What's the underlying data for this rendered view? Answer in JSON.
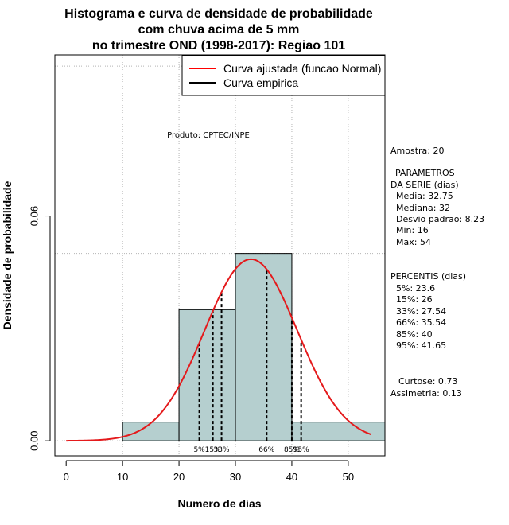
{
  "chart_data": {
    "type": "bar",
    "title_lines": [
      "Histograma e curva de densidade de probabilidade",
      "com chuva acima de 5 mm",
      "no trimestre OND (1998-2017): Regiao 101"
    ],
    "xlabel": "Numero de dias",
    "ylabel": "Densidade de probabilidade",
    "xlim": [
      -2,
      56.5
    ],
    "ylim": [
      -0.004,
      0.103
    ],
    "x_ticks": [
      0,
      10,
      20,
      30,
      40,
      50
    ],
    "y_ticks": [
      0.0,
      0.06
    ],
    "y_tick_labels": [
      "0.00",
      "0.06"
    ],
    "bins": [
      {
        "start": 10,
        "end": 20,
        "density": 0.005
      },
      {
        "start": 20,
        "end": 30,
        "density": 0.035
      },
      {
        "start": 30,
        "end": 40,
        "density": 0.05
      },
      {
        "start": 40,
        "end": 56.5,
        "density": 0.005
      }
    ],
    "normal_curve": {
      "name": "Curva ajustada (funcao Normal)",
      "mean": 32.75,
      "sd": 8.23,
      "x_range": [
        0,
        54
      ],
      "color": "#e41a1c"
    },
    "grid_h": [
      0.0,
      0.06,
      0.05,
      0.1
    ],
    "grid_v": [
      10,
      20,
      30,
      40,
      50
    ],
    "legend": {
      "position": "top-right",
      "entries": [
        {
          "label": "Curva ajustada (funcao Normal)",
          "color": "#ff0000"
        },
        {
          "label": "Curva empirica",
          "color": "#000000"
        }
      ]
    },
    "percentiles": [
      {
        "label": "5%",
        "value": 23.6
      },
      {
        "label": "15%",
        "value": 26
      },
      {
        "label": "33%",
        "value": 27.54
      },
      {
        "label": "66%",
        "value": 35.54
      },
      {
        "label": "85%",
        "value": 40
      },
      {
        "label": "95%",
        "value": 41.65
      }
    ],
    "percentile_tick_text": [
      "5%",
      "15%",
      "33%",
      "66%",
      "85%",
      "95%"
    ],
    "product_note": "Produto: CPTEC/INPE"
  },
  "side_text": {
    "amostra": "Amostra: 20",
    "param_title1": "PARAMETROS",
    "param_title2": "DA SERIE (dias)",
    "media": "Media: 32.75",
    "mediana": "Mediana: 32",
    "desvio": "Desvio padrao: 8.23",
    "min": "Min: 16",
    "max": "Max: 54",
    "pct_title": "PERCENTIS (dias)",
    "p5": "5%: 23.6",
    "p15": "15%: 26",
    "p33": "33%: 27.54",
    "p66": "66%: 35.54",
    "p85": "85%: 40",
    "p95": "95%: 41.65",
    "curtose": "Curtose: 0.73",
    "assimetria": "Assimetria: 0.13"
  },
  "colors": {
    "bar_fill": "#b5cfcf",
    "bar_stroke": "#000000",
    "grid": "#b4b4b4",
    "curve": "#e41a1c"
  }
}
